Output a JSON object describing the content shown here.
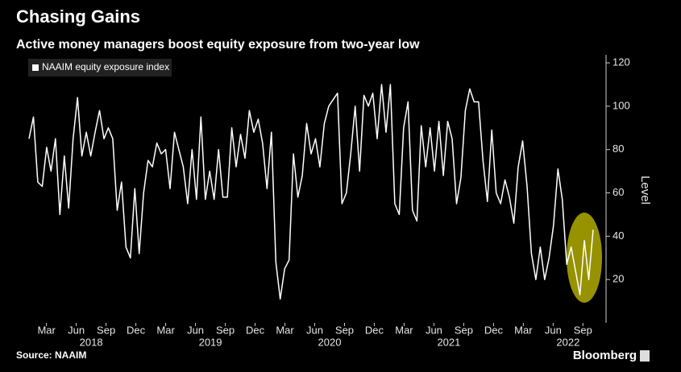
{
  "chart_data": {
    "type": "line",
    "title": "Chasing Gains",
    "subtitle": "Active money managers boost equity exposure from two-year low",
    "y_axis_label": "Level",
    "source": "Source: NAAIM",
    "brand": "Bloomberg",
    "series": [
      {
        "name": "NAAIM equity exposure index",
        "color": "#ffffff",
        "values": [
          85,
          95,
          65,
          63,
          81,
          70,
          85,
          50,
          77,
          53,
          85,
          104,
          77,
          88,
          77,
          88,
          98,
          85,
          90,
          85,
          52,
          65,
          35,
          30,
          62,
          32,
          60,
          75,
          72,
          83,
          78,
          80,
          62,
          88,
          80,
          72,
          55,
          80,
          57,
          95,
          57,
          70,
          57,
          80,
          58,
          58,
          90,
          72,
          87,
          76,
          98,
          88,
          94,
          83,
          62,
          88,
          28,
          11,
          25,
          29,
          78,
          58,
          68,
          92,
          78,
          85,
          72,
          92,
          100,
          103,
          106,
          55,
          60,
          78,
          100,
          70,
          105,
          100,
          106,
          85,
          110,
          88,
          110,
          55,
          50,
          90,
          102,
          52,
          47,
          91,
          72,
          90,
          70,
          93,
          68,
          93,
          85,
          55,
          67,
          98,
          108,
          102,
          102,
          75,
          56,
          89,
          60,
          55,
          66,
          58,
          46,
          72,
          84,
          63,
          32,
          20,
          35,
          20,
          30,
          45,
          71,
          57,
          27,
          35,
          24,
          13,
          38,
          20,
          43
        ]
      }
    ],
    "ylim": [
      0,
      123
    ],
    "yticks": [
      20,
      40,
      60,
      80,
      100,
      120
    ],
    "xlim": [
      0,
      58
    ],
    "xticks": [
      {
        "value": 2,
        "label": "Mar"
      },
      {
        "value": 5,
        "label": "Jun"
      },
      {
        "value": 8,
        "label": "Sep"
      },
      {
        "value": 11,
        "label": "Dec"
      },
      {
        "value": 14,
        "label": "Mar"
      },
      {
        "value": 17,
        "label": "Jun"
      },
      {
        "value": 20,
        "label": "Sep"
      },
      {
        "value": 23,
        "label": "Dec"
      },
      {
        "value": 26,
        "label": "Mar"
      },
      {
        "value": 29,
        "label": "Jun"
      },
      {
        "value": 32,
        "label": "Sep"
      },
      {
        "value": 35,
        "label": "Dec"
      },
      {
        "value": 38,
        "label": "Mar"
      },
      {
        "value": 41,
        "label": "Jun"
      },
      {
        "value": 44,
        "label": "Sep"
      },
      {
        "value": 47,
        "label": "Dec"
      },
      {
        "value": 50,
        "label": "Mar"
      },
      {
        "value": 53,
        "label": "Jun"
      },
      {
        "value": 56,
        "label": "Sep"
      }
    ],
    "xgroups": [
      {
        "value": 6.5,
        "label": "2018"
      },
      {
        "value": 18.5,
        "label": "2019"
      },
      {
        "value": 30.5,
        "label": "2020"
      },
      {
        "value": 42.5,
        "label": "2021"
      },
      {
        "value": 54.5,
        "label": "2022"
      }
    ]
  }
}
